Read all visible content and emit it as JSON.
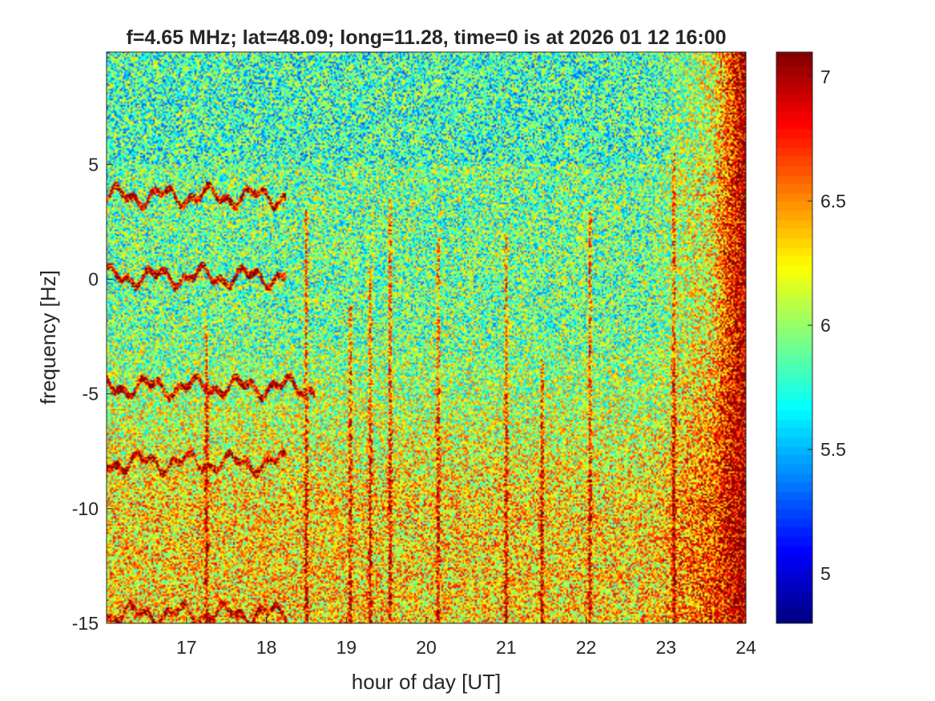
{
  "chart_data": {
    "type": "heatmap",
    "title": "f=4.65 MHz;  lat=48.09; long=11.28, time=0 is at 2026 01 12 16:00",
    "xlabel": "hour of day [UT]",
    "ylabel": "frequency [Hz]",
    "xlim": [
      16.0,
      24.0
    ],
    "ylim": [
      -15.0,
      9.9
    ],
    "xticks": [
      17,
      18,
      19,
      20,
      21,
      22,
      23,
      24
    ],
    "yticks": [
      -15,
      -10,
      -5,
      0,
      5
    ],
    "colorbar": {
      "colormap": "jet",
      "range": [
        4.8,
        7.1
      ],
      "ticks": [
        5,
        5.5,
        6,
        6.5,
        7
      ]
    },
    "background_level": 5.9,
    "noise_amplitude": 0.55,
    "right_edge_level": 7.05,
    "traces": [
      {
        "f0": 3.6,
        "x_start": 16.0,
        "x_end": 18.25
      },
      {
        "f0": 0.1,
        "x_start": 16.0,
        "x_end": 18.25
      },
      {
        "f0": -4.7,
        "x_start": 16.0,
        "x_end": 18.6
      },
      {
        "f0": -8.0,
        "x_start": 16.0,
        "x_end": 18.25
      },
      {
        "f0": -14.6,
        "x_start": 16.0,
        "x_end": 18.25
      }
    ],
    "streaks": [
      {
        "x": 17.25,
        "f_top": -2.0
      },
      {
        "x": 18.5,
        "f_top": 3.0
      },
      {
        "x": 19.05,
        "f_top": -1.2
      },
      {
        "x": 19.3,
        "f_top": 0.5
      },
      {
        "x": 19.55,
        "f_top": 3.5
      },
      {
        "x": 20.15,
        "f_top": 1.8
      },
      {
        "x": 21.0,
        "f_top": 2.0
      },
      {
        "x": 21.45,
        "f_top": -3.5
      },
      {
        "x": 22.05,
        "f_top": 3.0
      },
      {
        "x": 23.1,
        "f_top": 5.5
      }
    ]
  }
}
